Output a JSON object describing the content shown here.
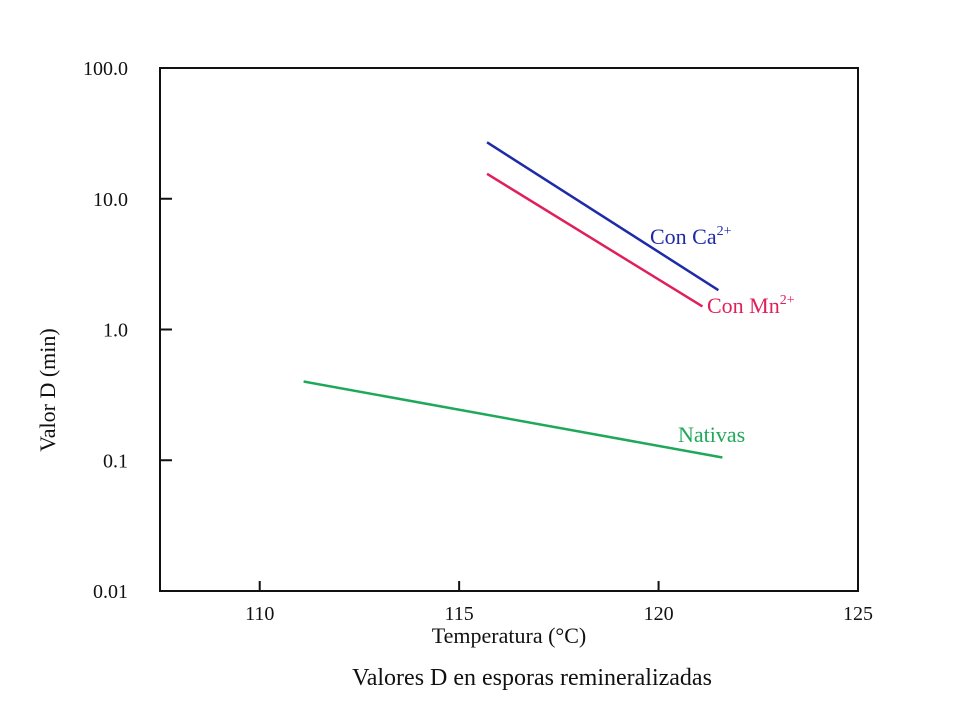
{
  "chart_data": {
    "type": "line",
    "title": "",
    "caption": "Valores D en esporas remineralizadas",
    "xlabel": "Temperatura (°C)",
    "ylabel": "Valor D (min)",
    "y_scale": "log",
    "xlim": [
      107.5,
      125
    ],
    "ylim": [
      0.01,
      100
    ],
    "x_ticks": [
      110,
      115,
      120,
      125
    ],
    "x_tick_labels": [
      "110",
      "115",
      "120",
      "125"
    ],
    "y_ticks": [
      0.01,
      0.1,
      1,
      10,
      100
    ],
    "y_tick_labels": [
      "0.01",
      "0.1",
      "1.0",
      "10.0",
      "100.0"
    ],
    "grid": false,
    "legend": "inline labels",
    "series": [
      {
        "name": "Con Ca",
        "superscript": "2+",
        "color": "#1e2aa8",
        "x": [
          115.7,
          121.5
        ],
        "y": [
          27,
          2.0
        ]
      },
      {
        "name": "Con Mn",
        "superscript": "2+",
        "color": "#e0205a",
        "x": [
          115.7,
          121.1
        ],
        "y": [
          15.5,
          1.5
        ]
      },
      {
        "name": "Nativas",
        "superscript": "",
        "color": "#1fa85a",
        "x": [
          111.1,
          121.6
        ],
        "y": [
          0.4,
          0.105
        ]
      }
    ]
  }
}
